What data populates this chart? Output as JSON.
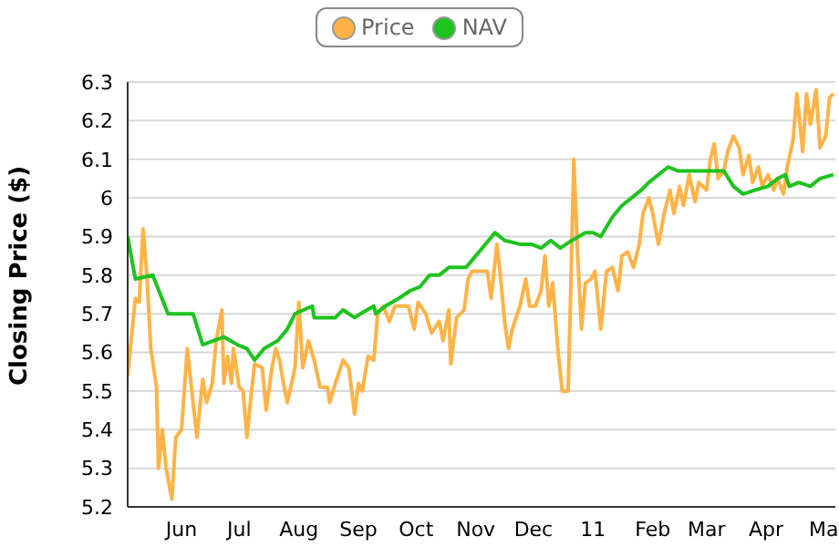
{
  "chart_data": {
    "type": "line",
    "ylabel": "Closing Price ($)",
    "xlim": [
      "2010-05-18",
      "2011-05-21"
    ],
    "xticks": [
      {
        "value": "2010-06-15",
        "label": "Jun"
      },
      {
        "value": "2010-07-15",
        "label": "Jul"
      },
      {
        "value": "2010-08-15",
        "label": "Aug"
      },
      {
        "value": "2010-09-15",
        "label": "Sep"
      },
      {
        "value": "2010-10-15",
        "label": "Oct"
      },
      {
        "value": "2010-11-15",
        "label": "Nov"
      },
      {
        "value": "2010-12-15",
        "label": "Dec"
      },
      {
        "value": "2011-01-15",
        "label": "11"
      },
      {
        "value": "2011-02-15",
        "label": "Feb"
      },
      {
        "value": "2011-03-15",
        "label": "Mar"
      },
      {
        "value": "2011-04-15",
        "label": "Apr"
      },
      {
        "value": "2011-05-15",
        "label": "Ma"
      }
    ],
    "ylim": [
      5.2,
      6.3
    ],
    "yticks": [
      5.2,
      5.3,
      5.4,
      5.5,
      5.6,
      5.7,
      5.8,
      5.9,
      6,
      6.1,
      6.2,
      6.3
    ],
    "grid": "y",
    "legend": "top",
    "marker": "none",
    "line_style": "solid",
    "series": [
      {
        "name": "Price",
        "color": "#ffb347",
        "x": [
          "2010-05-18",
          "2010-05-22",
          "2010-05-24",
          "2010-05-26",
          "2010-05-28",
          "2010-05-30",
          "2010-06-02",
          "2010-06-03",
          "2010-06-05",
          "2010-06-07",
          "2010-06-10",
          "2010-06-12",
          "2010-06-15",
          "2010-06-16",
          "2010-06-18",
          "2010-06-21",
          "2010-06-23",
          "2010-06-26",
          "2010-06-28",
          "2010-07-01",
          "2010-07-03",
          "2010-07-06",
          "2010-07-07",
          "2010-07-09",
          "2010-07-11",
          "2010-07-12",
          "2010-07-15",
          "2010-07-17",
          "2010-07-19",
          "2010-07-21",
          "2010-07-23",
          "2010-07-27",
          "2010-07-29",
          "2010-08-01",
          "2010-08-03",
          "2010-08-05",
          "2010-08-07",
          "2010-08-09",
          "2010-08-13",
          "2010-08-15",
          "2010-08-17",
          "2010-08-20",
          "2010-08-23",
          "2010-08-26",
          "2010-08-30",
          "2010-08-31",
          "2010-09-03",
          "2010-09-07",
          "2010-09-10",
          "2010-09-13",
          "2010-09-15",
          "2010-09-17",
          "2010-09-20",
          "2010-09-23",
          "2010-09-25",
          "2010-09-28",
          "2010-10-01",
          "2010-10-04",
          "2010-10-07",
          "2010-10-11",
          "2010-10-14",
          "2010-10-16",
          "2010-10-20",
          "2010-10-23",
          "2010-10-27",
          "2010-10-29",
          "2010-11-01",
          "2010-11-02",
          "2010-11-05",
          "2010-11-09",
          "2010-11-11",
          "2010-11-13",
          "2010-11-17",
          "2010-11-21",
          "2010-11-23",
          "2010-11-26",
          "2010-11-28",
          "2010-11-30",
          "2010-12-02",
          "2010-12-04",
          "2010-12-08",
          "2010-12-11",
          "2010-12-13",
          "2010-12-16",
          "2010-12-19",
          "2010-12-21",
          "2010-12-23",
          "2010-12-25",
          "2010-12-28",
          "2010-12-30",
          "2011-01-02",
          "2011-01-03",
          "2011-01-05",
          "2011-01-07",
          "2011-01-09",
          "2011-01-11",
          "2011-01-14",
          "2011-01-16",
          "2011-01-19",
          "2011-01-22",
          "2011-01-25",
          "2011-01-28",
          "2011-01-30",
          "2011-02-02",
          "2011-02-05",
          "2011-02-08",
          "2011-02-10",
          "2011-02-13",
          "2011-02-15",
          "2011-02-18",
          "2011-02-21",
          "2011-02-24",
          "2011-02-26",
          "2011-03-01",
          "2011-03-03",
          "2011-03-06",
          "2011-03-09",
          "2011-03-11",
          "2011-03-15",
          "2011-03-17",
          "2011-03-19",
          "2011-03-21",
          "2011-03-24",
          "2011-03-26",
          "2011-03-29",
          "2011-04-01",
          "2011-04-03",
          "2011-04-06",
          "2011-04-08",
          "2011-04-11",
          "2011-04-13",
          "2011-04-16",
          "2011-04-19",
          "2011-04-21",
          "2011-04-24",
          "2011-04-26",
          "2011-04-29",
          "2011-05-01",
          "2011-05-04",
          "2011-05-06",
          "2011-05-08",
          "2011-05-11",
          "2011-05-13",
          "2011-05-16",
          "2011-05-18",
          "2011-05-20"
        ],
        "values": [
          5.54,
          5.74,
          5.73,
          5.92,
          5.8,
          5.61,
          5.51,
          5.3,
          5.4,
          5.3,
          5.22,
          5.38,
          5.4,
          5.47,
          5.61,
          5.47,
          5.38,
          5.53,
          5.47,
          5.52,
          5.63,
          5.71,
          5.52,
          5.59,
          5.52,
          5.61,
          5.51,
          5.5,
          5.38,
          5.48,
          5.57,
          5.56,
          5.45,
          5.56,
          5.61,
          5.58,
          5.52,
          5.47,
          5.56,
          5.73,
          5.56,
          5.63,
          5.58,
          5.51,
          5.51,
          5.47,
          5.52,
          5.58,
          5.56,
          5.44,
          5.52,
          5.5,
          5.59,
          5.58,
          5.7,
          5.72,
          5.68,
          5.72,
          5.72,
          5.72,
          5.66,
          5.73,
          5.7,
          5.65,
          5.68,
          5.63,
          5.71,
          5.57,
          5.69,
          5.71,
          5.79,
          5.81,
          5.81,
          5.81,
          5.74,
          5.88,
          5.79,
          5.68,
          5.61,
          5.66,
          5.72,
          5.79,
          5.72,
          5.72,
          5.76,
          5.85,
          5.72,
          5.78,
          5.59,
          5.5,
          5.5,
          5.68,
          6.1,
          5.85,
          5.66,
          5.78,
          5.79,
          5.81,
          5.66,
          5.81,
          5.82,
          5.76,
          5.85,
          5.86,
          5.82,
          5.88,
          5.96,
          6.0,
          5.96,
          5.88,
          5.96,
          6.02,
          5.96,
          6.03,
          5.98,
          6.06,
          5.99,
          6.04,
          6.02,
          6.1,
          6.14,
          6.05,
          6.07,
          6.12,
          6.16,
          6.13,
          6.06,
          6.11,
          6.04,
          6.08,
          6.03,
          6.06,
          6.02,
          6.05,
          6.01,
          6.08,
          6.15,
          6.27,
          6.12,
          6.27,
          6.19,
          6.28,
          6.13,
          6.16,
          6.26,
          6.27
        ]
      },
      {
        "name": "NAV",
        "color": "#1ec31e",
        "x": [
          "2010-05-18",
          "2010-05-22",
          "2010-05-31",
          "2010-06-08",
          "2010-06-21",
          "2010-06-26",
          "2010-07-07",
          "2010-07-14",
          "2010-07-19",
          "2010-07-23",
          "2010-07-28",
          "2010-08-04",
          "2010-08-09",
          "2010-08-13",
          "2010-08-22",
          "2010-08-23",
          "2010-09-03",
          "2010-09-07",
          "2010-09-13",
          "2010-09-16",
          "2010-09-23",
          "2010-09-24",
          "2010-09-29",
          "2010-10-06",
          "2010-10-12",
          "2010-10-17",
          "2010-10-22",
          "2010-10-27",
          "2010-11-01",
          "2010-11-05",
          "2010-11-10",
          "2010-11-15",
          "2010-11-20",
          "2010-11-25",
          "2010-11-30",
          "2010-12-08",
          "2010-12-14",
          "2010-12-19",
          "2010-12-24",
          "2010-12-29",
          "2011-01-04",
          "2011-01-11",
          "2011-01-15",
          "2011-01-19",
          "2011-01-25",
          "2011-01-30",
          "2011-02-04",
          "2011-02-09",
          "2011-02-13",
          "2011-02-18",
          "2011-02-23",
          "2011-02-28",
          "2011-03-06",
          "2011-03-13",
          "2011-03-18",
          "2011-03-24",
          "2011-03-29",
          "2011-04-03",
          "2011-04-09",
          "2011-04-16",
          "2011-04-21",
          "2011-04-25",
          "2011-04-27",
          "2011-05-02",
          "2011-05-08",
          "2011-05-13",
          "2011-05-20"
        ],
        "values": [
          5.9,
          5.79,
          5.8,
          5.7,
          5.7,
          5.62,
          5.64,
          5.62,
          5.61,
          5.58,
          5.61,
          5.63,
          5.66,
          5.7,
          5.72,
          5.69,
          5.69,
          5.71,
          5.69,
          5.7,
          5.72,
          5.7,
          5.72,
          5.74,
          5.76,
          5.77,
          5.8,
          5.8,
          5.82,
          5.82,
          5.82,
          5.85,
          5.88,
          5.91,
          5.89,
          5.88,
          5.88,
          5.87,
          5.89,
          5.87,
          5.89,
          5.91,
          5.91,
          5.9,
          5.95,
          5.98,
          6.0,
          6.02,
          6.04,
          6.06,
          6.08,
          6.07,
          6.07,
          6.07,
          6.07,
          6.07,
          6.03,
          6.01,
          6.02,
          6.03,
          6.05,
          6.06,
          6.03,
          6.04,
          6.03,
          6.05,
          6.06
        ]
      }
    ]
  }
}
